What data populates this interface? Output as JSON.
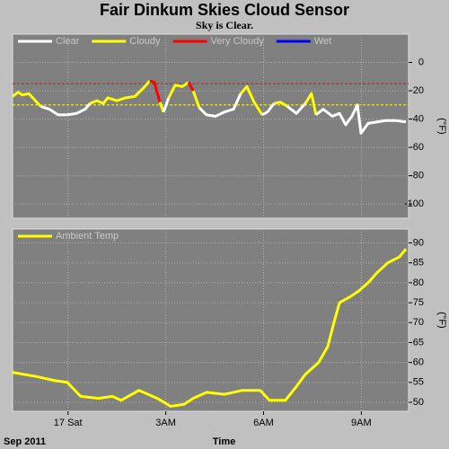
{
  "chart_data": [
    {
      "type": "line",
      "title": "Fair Dinkum Skies Cloud Sensor",
      "subtitle": "Sky is Clear.",
      "ylabel": "(°F)",
      "series": [
        {
          "name": "Clear",
          "color": "#ffffff"
        },
        {
          "name": "Cloudy",
          "color": "#ffff00"
        },
        {
          "name": "Very Cloudy",
          "color": "#ff0000"
        },
        {
          "name": "Wet",
          "color": "#0000ff"
        }
      ],
      "thresholds": [
        {
          "value": -30,
          "color": "#ffff00"
        },
        {
          "value": -15,
          "color": "#ff0000"
        }
      ],
      "x": [
        -1.7,
        -1.53,
        -1.4,
        -1.2,
        -0.98,
        -0.84,
        -0.57,
        -0.3,
        -0.02,
        0.26,
        0.53,
        0.67,
        0.89,
        1.08,
        1.22,
        1.5,
        1.77,
        2.05,
        2.32,
        2.51,
        2.65,
        2.82,
        2.93,
        3.09,
        3.29,
        3.51,
        3.7,
        3.84,
        4.03,
        4.25,
        4.53,
        4.8,
        5.08,
        5.3,
        5.49,
        5.71,
        5.96,
        6.12,
        6.32,
        6.51,
        6.73,
        7.01,
        7.28,
        7.47,
        7.61,
        7.83,
        8.11,
        8.33,
        8.52,
        8.71,
        8.88,
        8.99,
        9.21,
        9.48,
        9.76,
        10.04,
        10.37
      ],
      "values": [
        -24,
        -21,
        -23,
        -22,
        -27.5,
        -31,
        -33,
        -37,
        -37,
        -36,
        -33,
        -29,
        -27,
        -29,
        -25,
        -27,
        -25,
        -24,
        -18,
        -13,
        -14,
        -28,
        -35,
        -25,
        -16,
        -17,
        -14,
        -20,
        -32,
        -37,
        -38,
        -35,
        -33,
        -22,
        -17,
        -28,
        -37,
        -35,
        -29,
        -28,
        -31,
        -36,
        -29,
        -22,
        -37,
        -33,
        -38,
        -36,
        -44,
        -38,
        -30,
        -50,
        -43,
        -42,
        -41,
        -41,
        -42
      ],
      "xlim": [
        -1.7,
        10.45
      ],
      "xticks": [
        0,
        3,
        6,
        9
      ],
      "ylim": [
        -110,
        20
      ],
      "yticks": [
        0,
        -20,
        -40,
        -60,
        -80,
        -100
      ],
      "grid": true
    },
    {
      "type": "line",
      "xlabel": "Time",
      "date_label": "Sep 2011",
      "ylabel": "(°F)",
      "series": [
        {
          "name": "Ambient Temp",
          "color": "#ffff00",
          "x": [
            -1.7,
            -0.98,
            -0.43,
            -0.02,
            0.39,
            0.94,
            1.36,
            1.63,
            2.18,
            2.74,
            3.15,
            3.56,
            3.84,
            4.25,
            4.8,
            5.35,
            5.9,
            6.18,
            6.67,
            7.01,
            7.28,
            7.69,
            7.97,
            8.16,
            8.33,
            8.66,
            8.93,
            9.21,
            9.48,
            9.81,
            10.17,
            10.37
          ],
          "values": [
            57.5,
            56.5,
            55.5,
            55,
            51.5,
            51,
            51.5,
            50.5,
            53,
            51,
            49,
            49.5,
            51,
            52.5,
            52,
            53,
            53,
            50.5,
            50.5,
            54,
            57,
            60,
            64,
            70,
            75,
            76.5,
            78,
            80,
            82.5,
            85,
            86.5,
            88.5
          ]
        }
      ],
      "xlim": [
        -1.7,
        10.45
      ],
      "xticks": [
        {
          "value": 0,
          "label": "17 Sat"
        },
        {
          "value": 3,
          "label": "3AM"
        },
        {
          "value": 6,
          "label": "6AM"
        },
        {
          "value": 9,
          "label": "9AM"
        }
      ],
      "ylim": [
        47.75,
        93.5
      ],
      "yticks": [
        50,
        55,
        60,
        65,
        70,
        75,
        80,
        85,
        90
      ],
      "grid": true
    }
  ]
}
